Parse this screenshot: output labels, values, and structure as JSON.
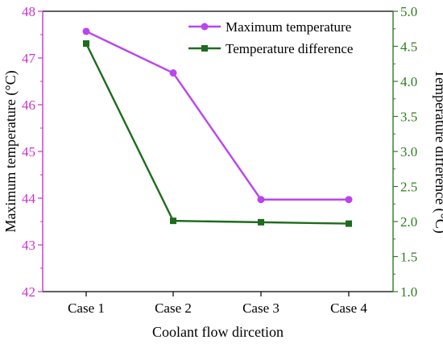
{
  "chart_data": {
    "type": "line",
    "title": "",
    "xlabel": "Coolant flow dircetion",
    "categories": [
      "Case 1",
      "Case 2",
      "Case 3",
      "Case 4"
    ],
    "y_left": {
      "label": "Maximum temperature (°C)",
      "range": [
        42,
        48
      ],
      "ticks": [
        42,
        43,
        44,
        45,
        46,
        47,
        48
      ],
      "color": "#cc33cc"
    },
    "y_right": {
      "label": "Temperature difference (°C)",
      "range": [
        1.0,
        5.0
      ],
      "ticks": [
        "1.0",
        "1.5",
        "2.0",
        "2.5",
        "3.0",
        "3.5",
        "4.0",
        "4.5",
        "5.0"
      ],
      "color": "#2e7d1e"
    },
    "series": [
      {
        "name": "Maximum temperature",
        "axis": "left",
        "marker": "circle",
        "color": "#bb44ee",
        "values": [
          47.57,
          46.68,
          43.97,
          43.97
        ]
      },
      {
        "name": "Temperature difference",
        "axis": "right",
        "marker": "square",
        "color": "#1f6b1f",
        "values": [
          4.54,
          2.01,
          1.99,
          1.97
        ]
      }
    ],
    "legend": "top-right",
    "grid": false
  }
}
